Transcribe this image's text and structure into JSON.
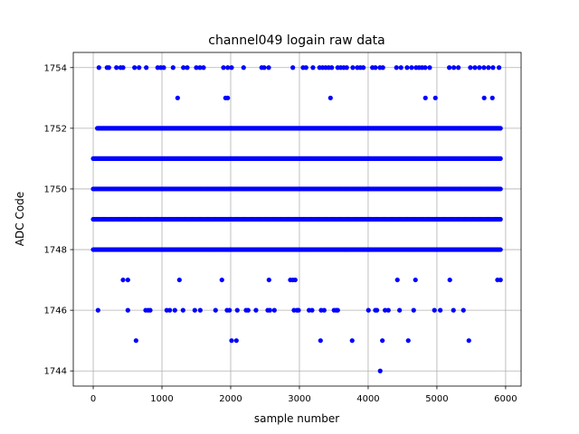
{
  "chart_data": {
    "type": "scatter",
    "title": "channel049 logain raw data",
    "xlabel": "sample number",
    "ylabel": "ADC Code",
    "xlim": [
      -290,
      6225
    ],
    "ylim": [
      1743.5,
      1754.5
    ],
    "xticks": [
      0,
      1000,
      2000,
      3000,
      4000,
      5000,
      6000
    ],
    "yticks": [
      1744,
      1746,
      1748,
      1750,
      1752,
      1754
    ],
    "grid": true,
    "marker_color": "#0000ff",
    "dense_levels": [
      {
        "y": 1752,
        "x_range": [
          60,
          5930
        ]
      },
      {
        "y": 1751,
        "x_range": [
          0,
          5930
        ]
      },
      {
        "y": 1750,
        "x_range": [
          0,
          5930
        ]
      },
      {
        "y": 1749,
        "x_range": [
          0,
          5930
        ]
      },
      {
        "y": 1748,
        "x_range": [
          0,
          5930
        ]
      }
    ],
    "sparse_points": [
      {
        "y": 1754,
        "x": [
          83,
          201,
          228,
          338,
          399,
          434,
          601,
          667,
          772,
          938,
          983,
          1026,
          1162,
          1312,
          1368,
          1500,
          1553,
          1605,
          1895,
          1957,
          2013,
          2188,
          2451,
          2487,
          2553,
          2904,
          3053,
          3096,
          3197,
          3293,
          3338,
          3382,
          3425,
          3470,
          3557,
          3601,
          3645,
          3688,
          3776,
          3842,
          3886,
          3930,
          4062,
          4105,
          4171,
          4214,
          4412,
          4478,
          4566,
          4632,
          4697,
          4741,
          4785,
          4829,
          4895,
          5180,
          5246,
          5312,
          5487,
          5553,
          5618,
          5684,
          5750,
          5816,
          5904
        ]
      },
      {
        "y": 1753,
        "x": [
          1228,
          1925,
          1957,
          3452,
          4833,
          4978,
          5688,
          5807
        ]
      },
      {
        "y": 1747,
        "x": [
          434,
          504,
          1254,
          1872,
          2557,
          2868,
          2904,
          2939,
          4425,
          4688,
          5188,
          5882,
          5925
        ]
      },
      {
        "y": 1746,
        "x": [
          70,
          504,
          763,
          799,
          829,
          1070,
          1114,
          1188,
          1307,
          1478,
          1557,
          1780,
          1947,
          1983,
          2096,
          2224,
          2254,
          2368,
          2539,
          2570,
          2636,
          2921,
          2964,
          2987,
          3140,
          3184,
          3316,
          3360,
          3504,
          3535,
          3557,
          4004,
          4105,
          4127,
          4246,
          4294,
          4457,
          4662,
          4964,
          5049,
          5241,
          5386
        ]
      },
      {
        "y": 1745,
        "x": [
          623,
          2013,
          2083,
          3307,
          3767,
          4207,
          4583,
          5465
        ]
      },
      {
        "y": 1744,
        "x": [
          4175
        ]
      }
    ]
  }
}
